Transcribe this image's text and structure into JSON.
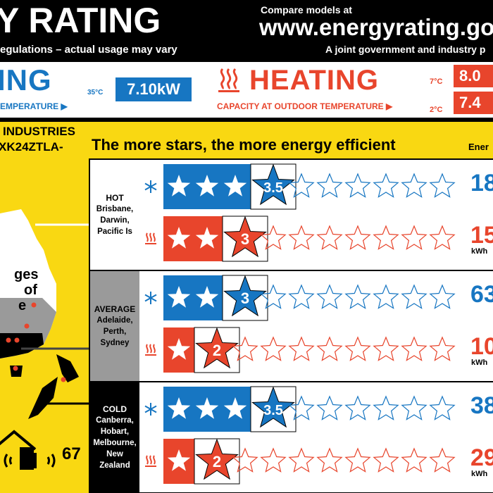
{
  "header": {
    "title": "Y RATING",
    "disclaimer": "egulations – actual usage may vary",
    "compare": "Compare models at",
    "url": "www.energyrating.gov",
    "joint": "A joint government and industry p"
  },
  "capacity": {
    "cooling_word": "ING",
    "cooling_sub": "EMPERATURE",
    "cooling_temp": "35°C",
    "cooling_value": "7.10kW",
    "heating_word": "HEATING",
    "heating_sub": "CAPACITY AT OUTDOOR TEMPERATURE",
    "heating_temp_1": "7°C",
    "heating_value_1": "8.0",
    "heating_temp_2": "2°C",
    "heating_value_2": "7.4",
    "colors": {
      "cool": "#1776c2",
      "heat": "#e8452c"
    }
  },
  "product": {
    "brand": "INDUSTRIES",
    "model": "XK24ZTLA-",
    "tagline": "The more stars, the more energy efficient",
    "energy_header": "Ener"
  },
  "map": {
    "text_1": "ges",
    "text_2": "of",
    "text_3": "e",
    "noise_value": "67"
  },
  "zones": [
    {
      "name": "HOT",
      "places": [
        "Brisbane,",
        "Darwin,",
        "Pacific Is"
      ],
      "cool_stars": 3.5,
      "cool_label": "3.5",
      "cool_energy": "18",
      "heat_stars": 3,
      "heat_label": "3",
      "heat_energy": "15",
      "unit": "kWh"
    },
    {
      "name": "AVERAGE",
      "places": [
        "Adelaide,",
        "Perth,",
        "Sydney"
      ],
      "cool_stars": 3,
      "cool_label": "3",
      "cool_energy": "63",
      "heat_stars": 2,
      "heat_label": "2",
      "heat_energy": "10",
      "unit": "kWh"
    },
    {
      "name": "COLD",
      "places": [
        "Canberra,",
        "Hobart,",
        "Melbourne,",
        "New Zealand"
      ],
      "cool_stars": 3.5,
      "cool_label": "3.5",
      "cool_energy": "38",
      "heat_stars": 2,
      "heat_label": "2",
      "heat_energy": "29",
      "unit": "kWh"
    }
  ],
  "icons": {
    "cool": "snowflake-icon",
    "heat": "heat-waves-icon",
    "noise": "speaker-icon"
  }
}
